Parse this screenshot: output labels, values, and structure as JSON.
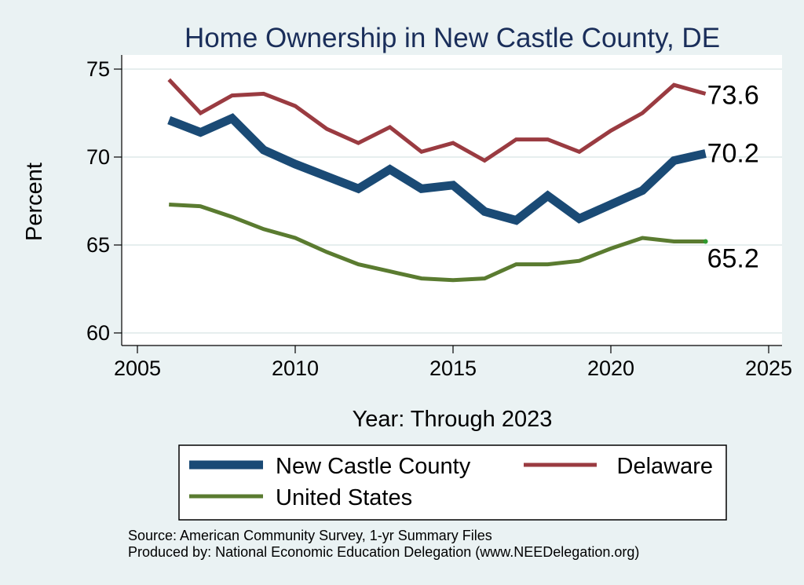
{
  "chart_data": {
    "type": "line",
    "title": "Home Ownership in New Castle County, DE",
    "xlabel": "Year: Through 2023",
    "ylabel": "Percent",
    "xlim": [
      2005,
      2025
    ],
    "ylim": [
      59.5,
      75.5
    ],
    "xticks": [
      "2005",
      "2010",
      "2015",
      "2020",
      "2025"
    ],
    "yticks": [
      "60",
      "65",
      "70",
      "75"
    ],
    "grid": true,
    "legend_position": "bottom",
    "x": [
      2006,
      2007,
      2008,
      2009,
      2010,
      2011,
      2012,
      2013,
      2014,
      2015,
      2016,
      2017,
      2018,
      2019,
      2020,
      2021,
      2022,
      2023
    ],
    "series": [
      {
        "name": "New Castle County",
        "color": "#1a4a75",
        "values": [
          72.1,
          71.4,
          72.2,
          70.4,
          69.6,
          68.9,
          68.2,
          69.3,
          68.2,
          68.4,
          66.9,
          66.4,
          67.8,
          66.5,
          67.3,
          68.1,
          69.8,
          70.2
        ],
        "end_label": "70.2"
      },
      {
        "name": "Delaware",
        "color": "#9a3b41",
        "values": [
          74.4,
          72.5,
          73.5,
          73.6,
          72.9,
          71.6,
          70.8,
          71.7,
          70.3,
          70.8,
          69.8,
          71.0,
          71.0,
          70.3,
          71.5,
          72.5,
          74.1,
          73.6
        ],
        "end_label": "73.6"
      },
      {
        "name": "United States",
        "color": "#5a7b30",
        "values": [
          67.3,
          67.2,
          66.6,
          65.9,
          65.4,
          64.6,
          63.9,
          63.5,
          63.1,
          63.0,
          63.1,
          63.9,
          63.9,
          64.1,
          64.8,
          65.4,
          65.2,
          65.2
        ],
        "end_label": "65.2"
      }
    ]
  },
  "notes": {
    "source": "Source: American Community Survey, 1-yr Summary Files",
    "produced_by": "Produced by: National Economic Education Delegation (www.NEEDelegation.org)"
  }
}
